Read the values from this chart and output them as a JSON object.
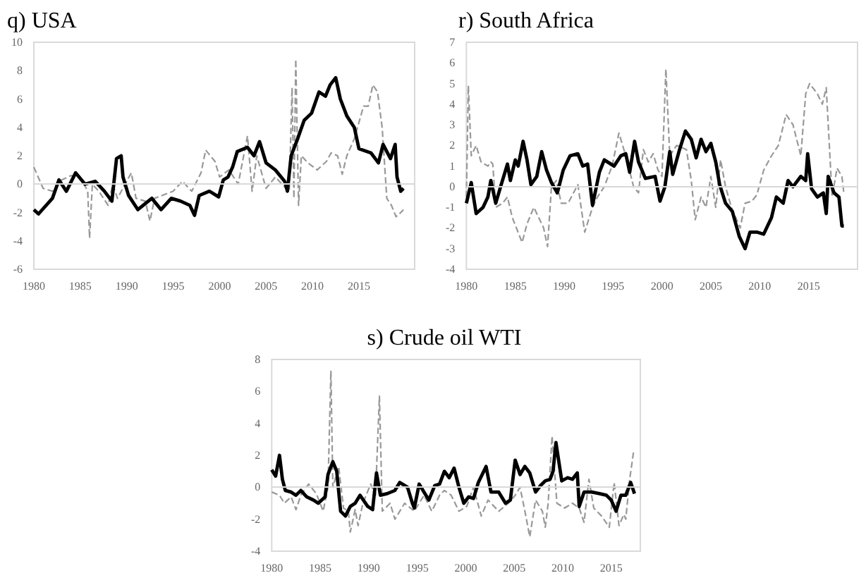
{
  "chart_data": [
    {
      "type": "line",
      "title": "q) USA",
      "xlim": [
        1980,
        2021
      ],
      "xticks": [
        1980,
        1985,
        1990,
        1995,
        2000,
        2005,
        2010,
        2015
      ],
      "ylim": [
        -6,
        10
      ],
      "yticks": [
        -6,
        -4,
        -2,
        0,
        2,
        4,
        6,
        8,
        10
      ],
      "grid": false,
      "ref_lines": [
        {
          "axis": "y",
          "value": 0,
          "color": "#d9d9d9"
        }
      ],
      "series": [
        {
          "color": "#000000",
          "line_style": "solid",
          "x": [
            1980,
            1980.5,
            1982,
            1982.7,
            1983.5,
            1984.5,
            1985.5,
            1986.6,
            1987.6,
            1988.4,
            1988.9,
            1989.4,
            1989.6,
            1990.2,
            1991.2,
            1992.7,
            1993.7,
            1994.8,
            1995.8,
            1996.8,
            1997.3,
            1997.8,
            1998.9,
            1999.9,
            2000.4,
            2000.9,
            2001.4,
            2001.9,
            2003,
            2003.7,
            2004.3,
            2005,
            2006,
            2007,
            2007.3,
            2007.7,
            2008.4,
            2009.1,
            2009.9,
            2010.7,
            2011.4,
            2011.9,
            2012.5,
            2013,
            2013.7,
            2014.5,
            2015,
            2016.3,
            2017.1,
            2017.6,
            2018.4,
            2018.9,
            2019.1,
            2019.5,
            2019.8
          ],
          "values": [
            -1.8,
            -2.1,
            -1,
            0.3,
            -0.5,
            0.8,
            0,
            0.2,
            -0.5,
            -1.2,
            1.8,
            2,
            0.5,
            -0.8,
            -1.8,
            -1,
            -1.8,
            -1,
            -1.2,
            -1.5,
            -2.2,
            -0.8,
            -0.5,
            -0.9,
            0.3,
            0.5,
            1.2,
            2.3,
            2.6,
            2,
            3,
            1.5,
            1,
            0.2,
            -0.5,
            2,
            3.2,
            4.5,
            5,
            6.5,
            6.2,
            7,
            7.5,
            6,
            4.8,
            4,
            2.5,
            2.2,
            1.5,
            2.8,
            1.8,
            2.8,
            0.5,
            -0.5,
            -0.3
          ]
        },
        {
          "color": "#999999",
          "line_style": "dashed",
          "x": [
            1980,
            1981,
            1982,
            1983,
            1984,
            1985,
            1985.8,
            1986,
            1986.3,
            1987,
            1988,
            1988.5,
            1989,
            1990.5,
            1991,
            1992,
            1992.5,
            1993,
            1995,
            1996,
            1997,
            1998,
            1998.5,
            1999.5,
            2000,
            2001,
            2002,
            2003,
            2003.5,
            2004,
            2005,
            2006,
            2007,
            2007.5,
            2007.8,
            2008,
            2008.2,
            2008.5,
            2008.8,
            2009.5,
            2010.5,
            2011.5,
            2012,
            2012.7,
            2013.2,
            2013.7,
            2014.5,
            2015.5,
            2016,
            2016.5,
            2017,
            2017.5,
            2018,
            2018.5,
            2019,
            2019.5,
            2019.8
          ],
          "values": [
            1.2,
            -0.3,
            -0.5,
            0.3,
            0.6,
            0.5,
            -0.5,
            -3.8,
            0,
            -0.5,
            -1.5,
            0,
            -1,
            0.8,
            -1,
            -1.2,
            -2.6,
            -1,
            -0.5,
            0.2,
            -0.5,
            0.8,
            2.4,
            1.6,
            0.5,
            1,
            0,
            3.4,
            -0.5,
            2,
            -0.3,
            0.5,
            -0.2,
            -0.5,
            6.8,
            -1,
            8.8,
            -1.5,
            2,
            1.5,
            1,
            1.6,
            2.2,
            2,
            0.7,
            2,
            3.2,
            5.5,
            5.5,
            7,
            6.5,
            4,
            -1,
            -1.5,
            -2.3,
            -2,
            -1.8
          ]
        }
      ]
    },
    {
      "type": "line",
      "title": "r) South Africa",
      "xlim": [
        1980,
        2020
      ],
      "xticks": [
        1980,
        1985,
        1990,
        1995,
        2000,
        2005,
        2010,
        2015
      ],
      "ylim": [
        -4,
        7
      ],
      "yticks": [
        -4,
        -3,
        -2,
        -1,
        0,
        1,
        2,
        3,
        4,
        5,
        6,
        7
      ],
      "grid": false,
      "ref_lines": [
        {
          "axis": "y",
          "value": 0,
          "color": "#d9d9d9"
        }
      ],
      "series": [
        {
          "color": "#000000",
          "line_style": "solid",
          "x": [
            1980,
            1980.5,
            1981,
            1981.7,
            1982.2,
            1982.5,
            1983,
            1983.5,
            1984.2,
            1984.5,
            1985,
            1985.3,
            1985.8,
            1986.2,
            1986.6,
            1987.2,
            1987.7,
            1988.2,
            1988.7,
            1989.3,
            1989.9,
            1990.6,
            1991.4,
            1991.9,
            1992.4,
            1992.9,
            1993.6,
            1994.1,
            1995.1,
            1995.8,
            1996.3,
            1996.7,
            1997.2,
            1997.6,
            1998.3,
            1999.3,
            1999.8,
            2000.3,
            2000.8,
            2001.1,
            2001.8,
            2002.4,
            2003,
            2003.5,
            2004,
            2004.5,
            2005,
            2005.5,
            2005.9,
            2006.5,
            2007.2,
            2007.9,
            2008.5,
            2009,
            2009.7,
            2010.4,
            2011.2,
            2011.7,
            2012.4,
            2012.9,
            2013.4,
            2014.2,
            2014.7,
            2014.9,
            2015.3,
            2015.9,
            2016.5,
            2016.8,
            2017,
            2017.6,
            2018.1,
            2018.4,
            2018.6
          ],
          "values": [
            -0.8,
            0.2,
            -1.3,
            -1,
            -0.5,
            0.3,
            -0.8,
            0,
            1.1,
            0.3,
            1.3,
            1,
            2.2,
            1.3,
            0.1,
            0.5,
            1.7,
            0.8,
            0.2,
            -0.3,
            0.8,
            1.5,
            1.6,
            1,
            1.1,
            -0.9,
            0.7,
            1.3,
            1,
            1.5,
            1.6,
            0.7,
            2.2,
            1.2,
            0.4,
            0.5,
            -0.7,
            0,
            1.7,
            0.6,
            1.8,
            2.7,
            2.3,
            1.4,
            2.3,
            1.7,
            2.1,
            1.2,
            0.1,
            -0.8,
            -1.2,
            -2.4,
            -3,
            -2.2,
            -2.2,
            -2.3,
            -1.5,
            -0.5,
            -0.8,
            0.3,
            0,
            0.5,
            0.3,
            1.6,
            -0.1,
            -0.5,
            -0.3,
            -1.3,
            0.5,
            -0.3,
            -0.5,
            -1.9,
            -1.9
          ]
        },
        {
          "color": "#999999",
          "line_style": "dashed",
          "x": [
            1980,
            1980.2,
            1980.5,
            1981,
            1981.5,
            1982.2,
            1982.5,
            1982.7,
            1983,
            1983.7,
            1984.2,
            1984.7,
            1985.7,
            1986.2,
            1986.9,
            1987.4,
            1987.9,
            1988.3,
            1988.7,
            1989.2,
            1989.7,
            1990.4,
            1991.4,
            1992.1,
            1992.9,
            1993.4,
            1994.1,
            1994.9,
            1995.6,
            1996.3,
            1997.1,
            1997.6,
            1998.1,
            1998.6,
            1999.1,
            1999.6,
            2000,
            2000.4,
            2000.8,
            2001.5,
            2002.5,
            2003,
            2003.4,
            2004,
            2004.5,
            2005,
            2005.5,
            2006,
            2006.5,
            2007.1,
            2008,
            2008.5,
            2009.2,
            2009.7,
            2010.4,
            2011.2,
            2011.9,
            2012.7,
            2013.4,
            2014.2,
            2014.7,
            2015.1,
            2015.9,
            2016.4,
            2016.8,
            2017.4,
            2017.9,
            2018.4,
            2018.6
          ],
          "values": [
            -0.5,
            4.9,
            1.5,
            2,
            1.2,
            1,
            1.2,
            1.1,
            -1,
            -0.8,
            -0.5,
            -1.5,
            -2.7,
            -1.8,
            -1,
            -1.5,
            -2,
            -2.9,
            0,
            0.3,
            -0.8,
            -0.8,
            0.1,
            -2.2,
            -1,
            -0.5,
            0,
            1,
            2.6,
            1.5,
            0,
            -0.3,
            1.8,
            1.2,
            1.6,
            0.8,
            0.5,
            5.7,
            1.5,
            2,
            1.8,
            0.3,
            -1.6,
            -0.5,
            -1,
            0.5,
            -1,
            1.3,
            0,
            -1,
            -2,
            -0.8,
            -0.7,
            -0.4,
            0.8,
            1.5,
            2,
            3.5,
            3,
            1.5,
            4.5,
            5,
            4.5,
            4,
            4.8,
            -0.5,
            0.9,
            0.5,
            -0.3
          ]
        }
      ]
    },
    {
      "type": "line",
      "title": "s) Crude oil WTI",
      "xlim": [
        1980,
        2018
      ],
      "xticks": [
        1980,
        1985,
        1990,
        1995,
        2000,
        2005,
        2010,
        2015
      ],
      "ylim": [
        -4,
        8
      ],
      "yticks": [
        -4,
        -2,
        0,
        2,
        4,
        6,
        8
      ],
      "grid": false,
      "ref_lines": [
        {
          "axis": "y",
          "value": 0,
          "color": "#d9d9d9"
        }
      ],
      "series": [
        {
          "color": "#000000",
          "line_style": "solid",
          "x": [
            1980,
            1980.4,
            1980.8,
            1981.1,
            1981.4,
            1982,
            1982.5,
            1983,
            1983.6,
            1984.3,
            1984.8,
            1985.5,
            1985.8,
            1986.3,
            1986.7,
            1987.1,
            1987.6,
            1988.1,
            1988.6,
            1989.1,
            1989.9,
            1990.4,
            1990.8,
            1991.2,
            1991.9,
            1992.7,
            1993.2,
            1994,
            1994.5,
            1994.7,
            1995.2,
            1995.7,
            1996.2,
            1996.8,
            1997.3,
            1997.8,
            1998.3,
            1998.8,
            1999.3,
            1999.8,
            2000.3,
            2000.8,
            2001.3,
            2002.1,
            2002.6,
            2003.4,
            2004.1,
            2004.6,
            2005.1,
            2005.6,
            2006.1,
            2006.6,
            2007.2,
            2007.7,
            2008.2,
            2008.7,
            2009,
            2009.3,
            2009.9,
            2010.5,
            2011,
            2011.5,
            2011.7,
            2012.2,
            2013,
            2013.8,
            2014.5,
            2015,
            2015.5,
            2016,
            2016.5,
            2017,
            2017.4
          ],
          "values": [
            1.1,
            0.7,
            2,
            0.5,
            -0.2,
            -0.3,
            -0.5,
            -0.2,
            -0.6,
            -0.8,
            -1,
            -0.6,
            0.8,
            1.6,
            1,
            -1.5,
            -1.8,
            -1.2,
            -1,
            -0.5,
            -1.2,
            -1.4,
            0.9,
            -0.5,
            -0.4,
            -0.2,
            0.3,
            0,
            -1,
            -1.3,
            0.2,
            -0.3,
            -0.8,
            0.1,
            0.2,
            1,
            0.6,
            1.2,
            0,
            -1,
            -0.6,
            -0.7,
            0.3,
            1.3,
            -0.3,
            -0.3,
            -1,
            -0.8,
            1.7,
            0.8,
            1.3,
            0.9,
            -0.3,
            0.1,
            0.4,
            0.5,
            1,
            2.8,
            0.4,
            0.6,
            0.5,
            0.9,
            -1.2,
            -0.3,
            -0.3,
            -0.4,
            -0.5,
            -0.8,
            -1.5,
            -0.5,
            -0.5,
            0.3,
            -0.4
          ]
        },
        {
          "color": "#999999",
          "line_style": "dashed",
          "x": [
            1980,
            1980.8,
            1981.3,
            1982,
            1982.5,
            1983,
            1983.8,
            1984.6,
            1985.3,
            1985.8,
            1986.1,
            1986.3,
            1986.9,
            1987.4,
            1987.9,
            1988.1,
            1988.6,
            1988.9,
            1989.4,
            1990.2,
            1990.7,
            1991.1,
            1991.4,
            1992.2,
            1992.7,
            1993.2,
            1993.7,
            1994.7,
            1995.7,
            1996.5,
            1997.3,
            1997.8,
            1998.5,
            1999.3,
            2000.1,
            2000.8,
            2001.6,
            2002.3,
            2003.4,
            2004.4,
            2005.1,
            2005.6,
            2006.1,
            2006.6,
            2007.2,
            2007.9,
            2008.2,
            2008.5,
            2008.9,
            2009.4,
            2010.2,
            2011,
            2011.7,
            2012.2,
            2012.7,
            2013.2,
            2014,
            2014.8,
            2015.3,
            2015.8,
            2016.3,
            2016.5,
            2016.9,
            2017.3
          ],
          "values": [
            -0.3,
            -0.5,
            -1,
            -0.6,
            -1.4,
            -0.5,
            0.2,
            -0.4,
            -1.5,
            0,
            7.3,
            0,
            1.3,
            -1.3,
            -1.5,
            -2.8,
            -1.4,
            -2.4,
            -1,
            0.2,
            -0.5,
            5.7,
            -1.5,
            -1,
            -2,
            -1.5,
            -1,
            -1.5,
            -0.5,
            -1.5,
            -0.5,
            -0.2,
            -0.5,
            -1.5,
            -1.2,
            0,
            -1.8,
            -0.8,
            -1.5,
            -1,
            -0.5,
            0,
            -1.5,
            -3.1,
            -0.8,
            -1.5,
            -2.5,
            -1,
            3.2,
            -1,
            -1.3,
            -1,
            -1.3,
            -2.2,
            0.5,
            -1.3,
            -1.8,
            -2.5,
            0.3,
            -2.4,
            -1.7,
            -2,
            0.5,
            2.2
          ]
        }
      ]
    }
  ]
}
